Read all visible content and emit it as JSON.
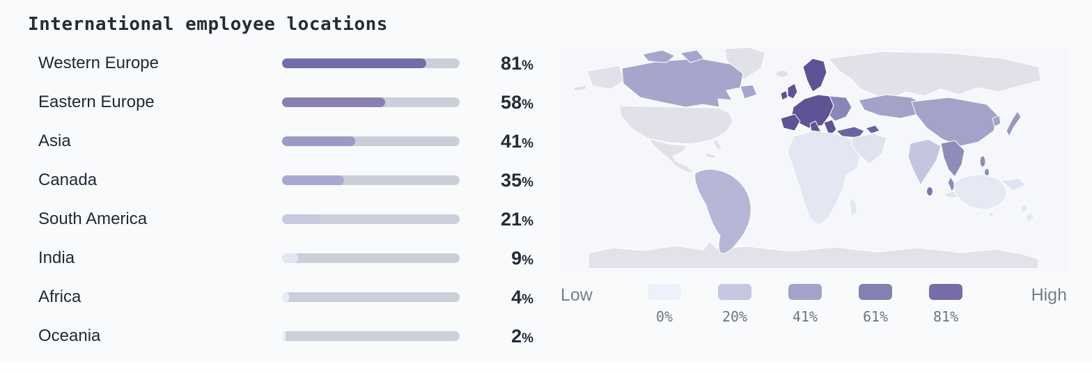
{
  "title": "International employee locations",
  "chart_data": {
    "type": "bar",
    "title": "International employee locations",
    "categories": [
      "Western Europe",
      "Eastern Europe",
      "Asia",
      "Canada",
      "South America",
      "India",
      "Africa",
      "Oceania"
    ],
    "values": [
      81,
      58,
      41,
      35,
      21,
      9,
      4,
      2
    ],
    "unit": "%",
    "xlim": [
      0,
      100
    ],
    "orientation": "horizontal",
    "bar_colors": [
      "#736da7",
      "#8781b3",
      "#9c99c5",
      "#aaa8d0",
      "#c9c8e1",
      "#e4e6f3",
      "#eaecf7",
      "#edeff8"
    ],
    "track_color": "#cbcfd9",
    "legend_position": "none",
    "grid": false
  },
  "map": {
    "type": "choropleth-world-map",
    "legend": {
      "low_label": "Low",
      "high_label": "High",
      "stops": [
        {
          "label": "0%",
          "color": "#edf1f9"
        },
        {
          "label": "20%",
          "color": "#c6c7e0"
        },
        {
          "label": "41%",
          "color": "#a3a2c9"
        },
        {
          "label": "61%",
          "color": "#8480b2"
        },
        {
          "label": "81%",
          "color": "#756da6"
        }
      ]
    },
    "region_colors": {
      "nodata": "#e1e2e9",
      "antarctica": "#e2e3ea",
      "canada": "#a6a6cc",
      "south_america": "#b7b6d7",
      "europe": "#5c5494",
      "eastern_europe": "#8a86b8",
      "turkey": "#6b64a0",
      "central_asia": "#a3a2c9",
      "china": "#a3a2c9",
      "japan": "#9b99c4",
      "korea": "#a3a2c9",
      "se_asia": "#8f8bba",
      "sri_lanka": "#7b76ab",
      "philippines": "#8f8bba",
      "india": "#c6c5df",
      "middle_east": "#e0e2ed",
      "africa": "#e3e7f2",
      "indonesia": "#dfe4ef",
      "australia": "#e4e9f4",
      "new_zealand": "#e4e9f4"
    }
  }
}
